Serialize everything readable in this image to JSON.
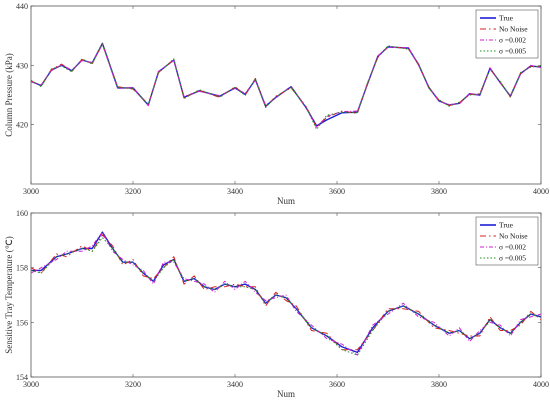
{
  "chart_data": [
    {
      "type": "line",
      "xlabel": "Num",
      "ylabel": "Column Pressure (kPa)",
      "xlim": [
        3000,
        4000
      ],
      "ylim": [
        410,
        440
      ],
      "xticks": [
        "3000",
        "3200",
        "3400",
        "3600",
        "3800",
        "4000"
      ],
      "yticks": [
        "420",
        "430",
        "440"
      ],
      "legend_position": "top-right",
      "legend": [
        "True",
        "No Noise",
        "σ =0.002",
        "σ =0.005"
      ],
      "colors": [
        "#1f1fd6",
        "#d62020",
        "#d020d0",
        "#1f8f1f"
      ],
      "x": [
        3000,
        3020,
        3040,
        3060,
        3080,
        3100,
        3120,
        3140,
        3170,
        3200,
        3230,
        3250,
        3280,
        3300,
        3330,
        3370,
        3400,
        3420,
        3440,
        3460,
        3480,
        3510,
        3540,
        3560,
        3580,
        3610,
        3640,
        3660,
        3680,
        3700,
        3740,
        3760,
        3780,
        3800,
        3820,
        3840,
        3860,
        3880,
        3900,
        3920,
        3940,
        3960,
        3980,
        4000
      ],
      "series": [
        {
          "name": "True",
          "values": [
            427.3,
            426.6,
            429.2,
            430.0,
            429.1,
            430.9,
            430.4,
            433.7,
            426.2,
            426.2,
            423.3,
            428.9,
            430.9,
            424.6,
            425.7,
            424.8,
            426.2,
            425.1,
            427.6,
            423.1,
            424.6,
            426.4,
            422.8,
            419.8,
            420.8,
            422.0,
            422.1,
            426.9,
            431.5,
            433.1,
            432.9,
            430.1,
            426.3,
            424.0,
            423.3,
            423.6,
            425.2,
            425.0,
            429.5,
            427.1,
            424.8,
            428.6,
            429.9,
            429.7
          ]
        },
        {
          "name": "No Noise",
          "values": [
            427.4,
            426.5,
            429.3,
            430.2,
            429.0,
            431.0,
            430.3,
            433.6,
            426.4,
            426.0,
            423.5,
            428.8,
            431.0,
            424.5,
            425.8,
            424.6,
            426.4,
            425.0,
            427.8,
            423.0,
            424.8,
            426.2,
            423.0,
            419.5,
            421.2,
            422.3,
            421.9,
            427.0,
            431.3,
            433.2,
            432.8,
            430.2,
            426.2,
            424.1,
            423.2,
            423.7,
            425.1,
            425.2,
            429.4,
            427.2,
            424.7,
            428.7,
            429.8,
            429.8
          ]
        },
        {
          "name": "σ =0.002",
          "values": [
            427.2,
            426.7,
            429.1,
            430.1,
            429.2,
            430.8,
            430.5,
            433.5,
            426.1,
            426.3,
            423.2,
            429.0,
            430.8,
            424.8,
            425.6,
            424.9,
            426.1,
            425.3,
            427.5,
            423.3,
            424.5,
            426.5,
            422.7,
            419.6,
            421.4,
            422.2,
            422.3,
            426.8,
            431.6,
            433.0,
            433.0,
            430.0,
            426.4,
            423.9,
            423.4,
            423.5,
            425.3,
            424.9,
            429.6,
            427.0,
            424.9,
            428.5,
            430.0,
            429.6
          ]
        },
        {
          "name": "σ =0.005",
          "values": [
            427.5,
            426.4,
            429.4,
            429.9,
            428.9,
            431.1,
            430.2,
            433.8,
            426.3,
            426.1,
            423.4,
            428.7,
            431.1,
            424.4,
            425.9,
            424.7,
            426.3,
            424.9,
            427.7,
            422.9,
            424.7,
            426.3,
            422.9,
            419.2,
            421.6,
            422.1,
            422.0,
            427.1,
            431.4,
            433.3,
            432.7,
            430.3,
            426.1,
            424.2,
            423.1,
            423.8,
            425.0,
            425.1,
            429.3,
            427.3,
            424.6,
            428.8,
            429.7,
            429.9
          ]
        }
      ]
    },
    {
      "type": "line",
      "xlabel": "Num",
      "ylabel": "Sensitive Tray Temperature (℃)",
      "xlim": [
        3000,
        4000
      ],
      "ylim": [
        154,
        160
      ],
      "xticks": [
        "3000",
        "3200",
        "3400",
        "3600",
        "3800",
        "4000"
      ],
      "yticks": [
        "154",
        "156",
        "158",
        "160"
      ],
      "legend_position": "top-right",
      "legend": [
        "True",
        "No Noise",
        "σ =0.002",
        "σ =0.005"
      ],
      "colors": [
        "#1f1fd6",
        "#d62020",
        "#d020d0",
        "#1f8f1f"
      ],
      "x": [
        3000,
        3020,
        3050,
        3070,
        3100,
        3120,
        3140,
        3160,
        3180,
        3200,
        3220,
        3240,
        3260,
        3280,
        3300,
        3320,
        3340,
        3360,
        3380,
        3400,
        3420,
        3440,
        3460,
        3480,
        3500,
        3520,
        3550,
        3580,
        3610,
        3640,
        3670,
        3700,
        3730,
        3760,
        3790,
        3820,
        3840,
        3860,
        3880,
        3900,
        3920,
        3940,
        3960,
        3980,
        4000
      ],
      "series": [
        {
          "name": "True",
          "values": [
            157.9,
            157.9,
            158.4,
            158.5,
            158.7,
            158.7,
            159.3,
            158.7,
            158.2,
            158.2,
            157.8,
            157.5,
            158.1,
            158.3,
            157.5,
            157.6,
            157.3,
            157.2,
            157.4,
            157.3,
            157.4,
            157.2,
            156.7,
            157.0,
            156.9,
            156.5,
            155.8,
            155.5,
            155.1,
            154.9,
            155.8,
            156.4,
            156.6,
            156.3,
            155.9,
            155.6,
            155.7,
            155.4,
            155.6,
            156.1,
            155.8,
            155.6,
            156.0,
            156.3,
            156.2
          ]
        },
        {
          "name": "No Noise",
          "values": [
            158.0,
            157.8,
            158.5,
            158.4,
            158.8,
            158.6,
            159.2,
            158.8,
            158.1,
            158.3,
            157.7,
            157.6,
            158.0,
            158.4,
            157.4,
            157.7,
            157.2,
            157.3,
            157.3,
            157.4,
            157.3,
            157.3,
            156.6,
            157.1,
            156.8,
            156.6,
            155.7,
            155.6,
            155.0,
            155.0,
            155.7,
            156.5,
            156.5,
            156.4,
            155.8,
            155.7,
            155.6,
            155.5,
            155.5,
            156.2,
            155.7,
            155.7,
            155.9,
            156.4,
            156.1
          ]
        },
        {
          "name": "σ =0.002",
          "values": [
            157.8,
            158.0,
            158.3,
            158.6,
            158.6,
            158.8,
            159.3,
            158.6,
            158.3,
            158.1,
            157.9,
            157.4,
            158.2,
            158.2,
            157.6,
            157.5,
            157.4,
            157.1,
            157.5,
            157.2,
            157.5,
            157.1,
            156.8,
            156.9,
            157.0,
            156.4,
            155.9,
            155.4,
            155.2,
            154.8,
            155.9,
            156.3,
            156.7,
            156.2,
            156.0,
            155.5,
            155.8,
            155.3,
            155.7,
            156.0,
            155.9,
            155.5,
            156.1,
            156.2,
            156.3
          ]
        },
        {
          "name": "σ =0.005",
          "values": [
            157.9,
            157.8,
            158.4,
            158.5,
            158.7,
            158.6,
            159.1,
            158.7,
            158.2,
            158.2,
            157.8,
            157.5,
            158.0,
            158.3,
            157.5,
            157.6,
            157.3,
            157.2,
            157.4,
            157.3,
            157.3,
            157.2,
            156.7,
            157.0,
            156.9,
            156.5,
            155.8,
            155.5,
            155.0,
            154.8,
            155.7,
            156.4,
            156.6,
            156.3,
            155.9,
            155.6,
            155.7,
            155.4,
            155.6,
            156.1,
            155.8,
            155.6,
            156.0,
            156.3,
            156.2
          ]
        }
      ]
    }
  ]
}
